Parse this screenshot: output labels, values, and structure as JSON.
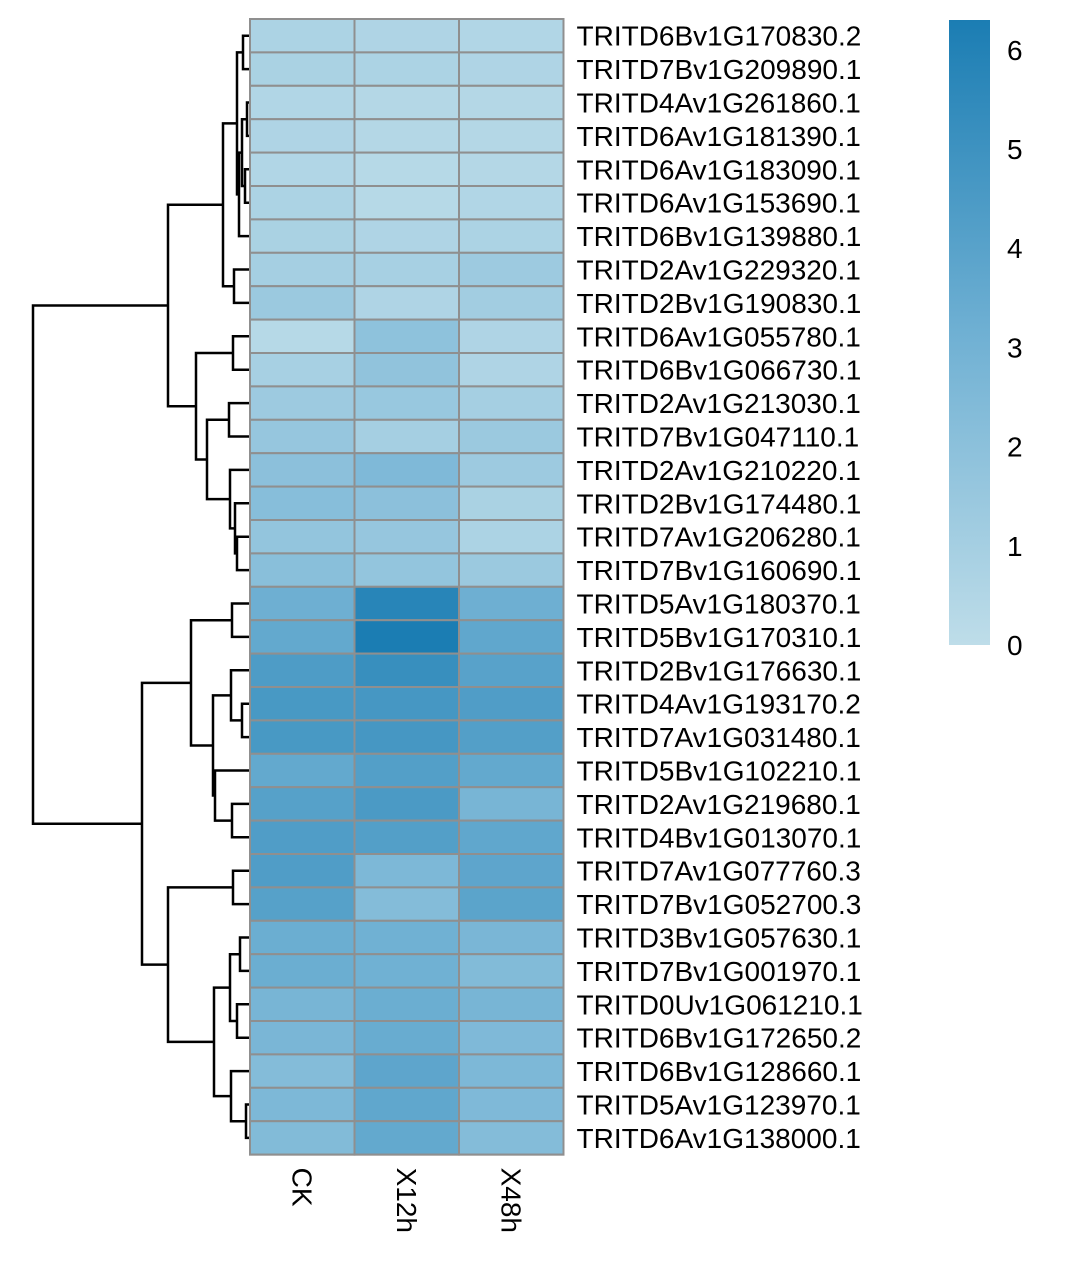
{
  "chart_data": {
    "type": "heatmap",
    "columns": [
      "CK",
      "X12h",
      "X48h"
    ],
    "rows": [
      "TRITD6Bv1G170830.2",
      "TRITD7Bv1G209890.1",
      "TRITD4Av1G261860.1",
      "TRITD6Av1G181390.1",
      "TRITD6Av1G183090.1",
      "TRITD6Av1G153690.1",
      "TRITD6Bv1G139880.1",
      "TRITD2Av1G229320.1",
      "TRITD2Bv1G190830.1",
      "TRITD6Av1G055780.1",
      "TRITD6Bv1G066730.1",
      "TRITD2Av1G213030.1",
      "TRITD7Bv1G047110.1",
      "TRITD2Av1G210220.1",
      "TRITD2Bv1G174480.1",
      "TRITD7Av1G206280.1",
      "TRITD7Bv1G160690.1",
      "TRITD5Av1G180370.1",
      "TRITD5Bv1G170310.1",
      "TRITD2Bv1G176630.1",
      "TRITD4Av1G193170.2",
      "TRITD7Av1G031480.1",
      "TRITD5Bv1G102210.1",
      "TRITD2Av1G219680.1",
      "TRITD4Bv1G013070.1",
      "TRITD7Av1G077760.3",
      "TRITD7Bv1G052700.3",
      "TRITD3Bv1G057630.1",
      "TRITD7Bv1G001970.1",
      "TRITD0Uv1G061210.1",
      "TRITD6Bv1G172650.2",
      "TRITD6Bv1G128660.1",
      "TRITD5Av1G123970.1",
      "TRITD6Av1G138000.1"
    ],
    "values": [
      [
        0.7,
        0.6,
        0.5
      ],
      [
        0.8,
        0.7,
        0.6
      ],
      [
        0.5,
        0.4,
        0.4
      ],
      [
        0.6,
        0.4,
        0.4
      ],
      [
        0.5,
        0.3,
        0.4
      ],
      [
        0.7,
        0.3,
        0.5
      ],
      [
        0.8,
        0.6,
        0.7
      ],
      [
        1.0,
        0.9,
        1.3
      ],
      [
        1.4,
        0.6,
        1.1
      ],
      [
        0.3,
        1.9,
        0.6
      ],
      [
        0.9,
        1.8,
        0.6
      ],
      [
        1.3,
        1.5,
        1.0
      ],
      [
        1.6,
        1.0,
        1.4
      ],
      [
        2.0,
        2.5,
        1.3
      ],
      [
        2.2,
        2.0,
        0.8
      ],
      [
        1.7,
        1.6,
        0.7
      ],
      [
        2.1,
        1.7,
        1.4
      ],
      [
        3.2,
        5.8,
        3.2
      ],
      [
        3.6,
        6.3,
        3.7
      ],
      [
        4.4,
        5.2,
        4.0
      ],
      [
        4.6,
        4.7,
        4.3
      ],
      [
        4.6,
        4.7,
        4.2
      ],
      [
        3.6,
        4.2,
        3.6
      ],
      [
        4.1,
        4.5,
        2.8
      ],
      [
        4.3,
        4.2,
        3.7
      ],
      [
        4.3,
        2.6,
        3.8
      ],
      [
        4.1,
        2.3,
        3.9
      ],
      [
        3.3,
        3.1,
        2.7
      ],
      [
        3.3,
        3.1,
        2.4
      ],
      [
        2.8,
        3.3,
        2.8
      ],
      [
        2.7,
        3.4,
        2.5
      ],
      [
        2.3,
        3.8,
        2.6
      ],
      [
        2.6,
        3.7,
        2.5
      ],
      [
        2.4,
        3.6,
        2.3
      ]
    ],
    "colorbar": {
      "min": 0,
      "max": 6.3,
      "ticks": [
        0,
        1,
        2,
        3,
        4,
        5,
        6
      ]
    },
    "colors": {
      "low": "#bedde9",
      "mid": "#6fb0d3",
      "high": "#1b7db3",
      "cell_border": "#8f8f8f"
    },
    "dendrogram": "rows"
  }
}
